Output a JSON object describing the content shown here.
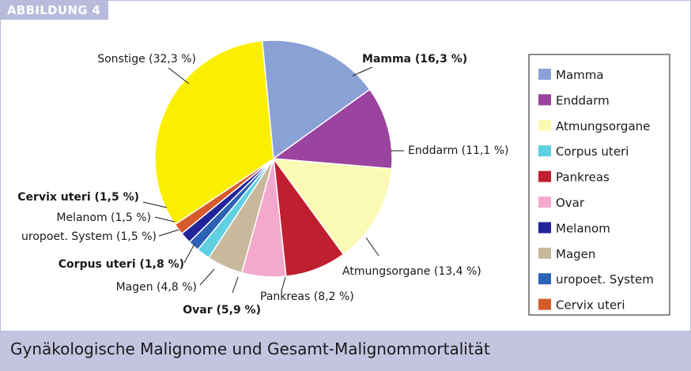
{
  "badge": "ABBILDUNG 4",
  "caption": "Gynäkologische Malignome und Gesamt-Malignommortalität",
  "chart_data": {
    "type": "pie",
    "slices": [
      {
        "name": "Mamma",
        "value": 16.3,
        "label": "Mamma (16,3 %)",
        "bold": true,
        "color": "#8aa1d6"
      },
      {
        "name": "Enddarm",
        "value": 11.1,
        "label": "Enddarm (11,1 %)",
        "bold": false,
        "color": "#9a44a0"
      },
      {
        "name": "Atmungsorgane",
        "value": 13.4,
        "label": "Atmungsorgane (13,4 %)",
        "bold": false,
        "color": "#fafab4"
      },
      {
        "name": "Pankreas",
        "value": 8.2,
        "label": "Pankreas (8,2 %)",
        "bold": false,
        "color": "#c01f2f"
      },
      {
        "name": "Ovar",
        "value": 5.9,
        "label": "Ovar (5,9 %)",
        "bold": true,
        "color": "#f3a8cc"
      },
      {
        "name": "Magen",
        "value": 4.8,
        "label": "Magen (4,8 %)",
        "bold": false,
        "color": "#c8b89c"
      },
      {
        "name": "Corpus uteri",
        "value": 1.8,
        "label": "Corpus uteri (1,8 %)",
        "bold": true,
        "color": "#5fcfe2"
      },
      {
        "name": "uropoet. System",
        "value": 1.5,
        "label": "uropoet. System (1,5 %)",
        "bold": false,
        "color": "#2c62b5"
      },
      {
        "name": "Melanom",
        "value": 1.5,
        "label": "Melanom (1,5 %)",
        "bold": false,
        "color": "#23239a"
      },
      {
        "name": "Cervix uteri",
        "value": 1.5,
        "label": "Cervix uteri (1,5 %)",
        "bold": true,
        "color": "#d65a2c"
      },
      {
        "name": "Sonstige",
        "value": 32.3,
        "label": "Sonstige (32,3 %)",
        "bold": false,
        "color": "#fbef00"
      }
    ],
    "legend": [
      "Mamma",
      "Enddarm",
      "Atmungsorgane",
      "Corpus uteri",
      "Pankreas",
      "Ovar",
      "Melanom",
      "Magen",
      "uropoet. System",
      "Cervix uteri"
    ],
    "legend_position": "right"
  }
}
